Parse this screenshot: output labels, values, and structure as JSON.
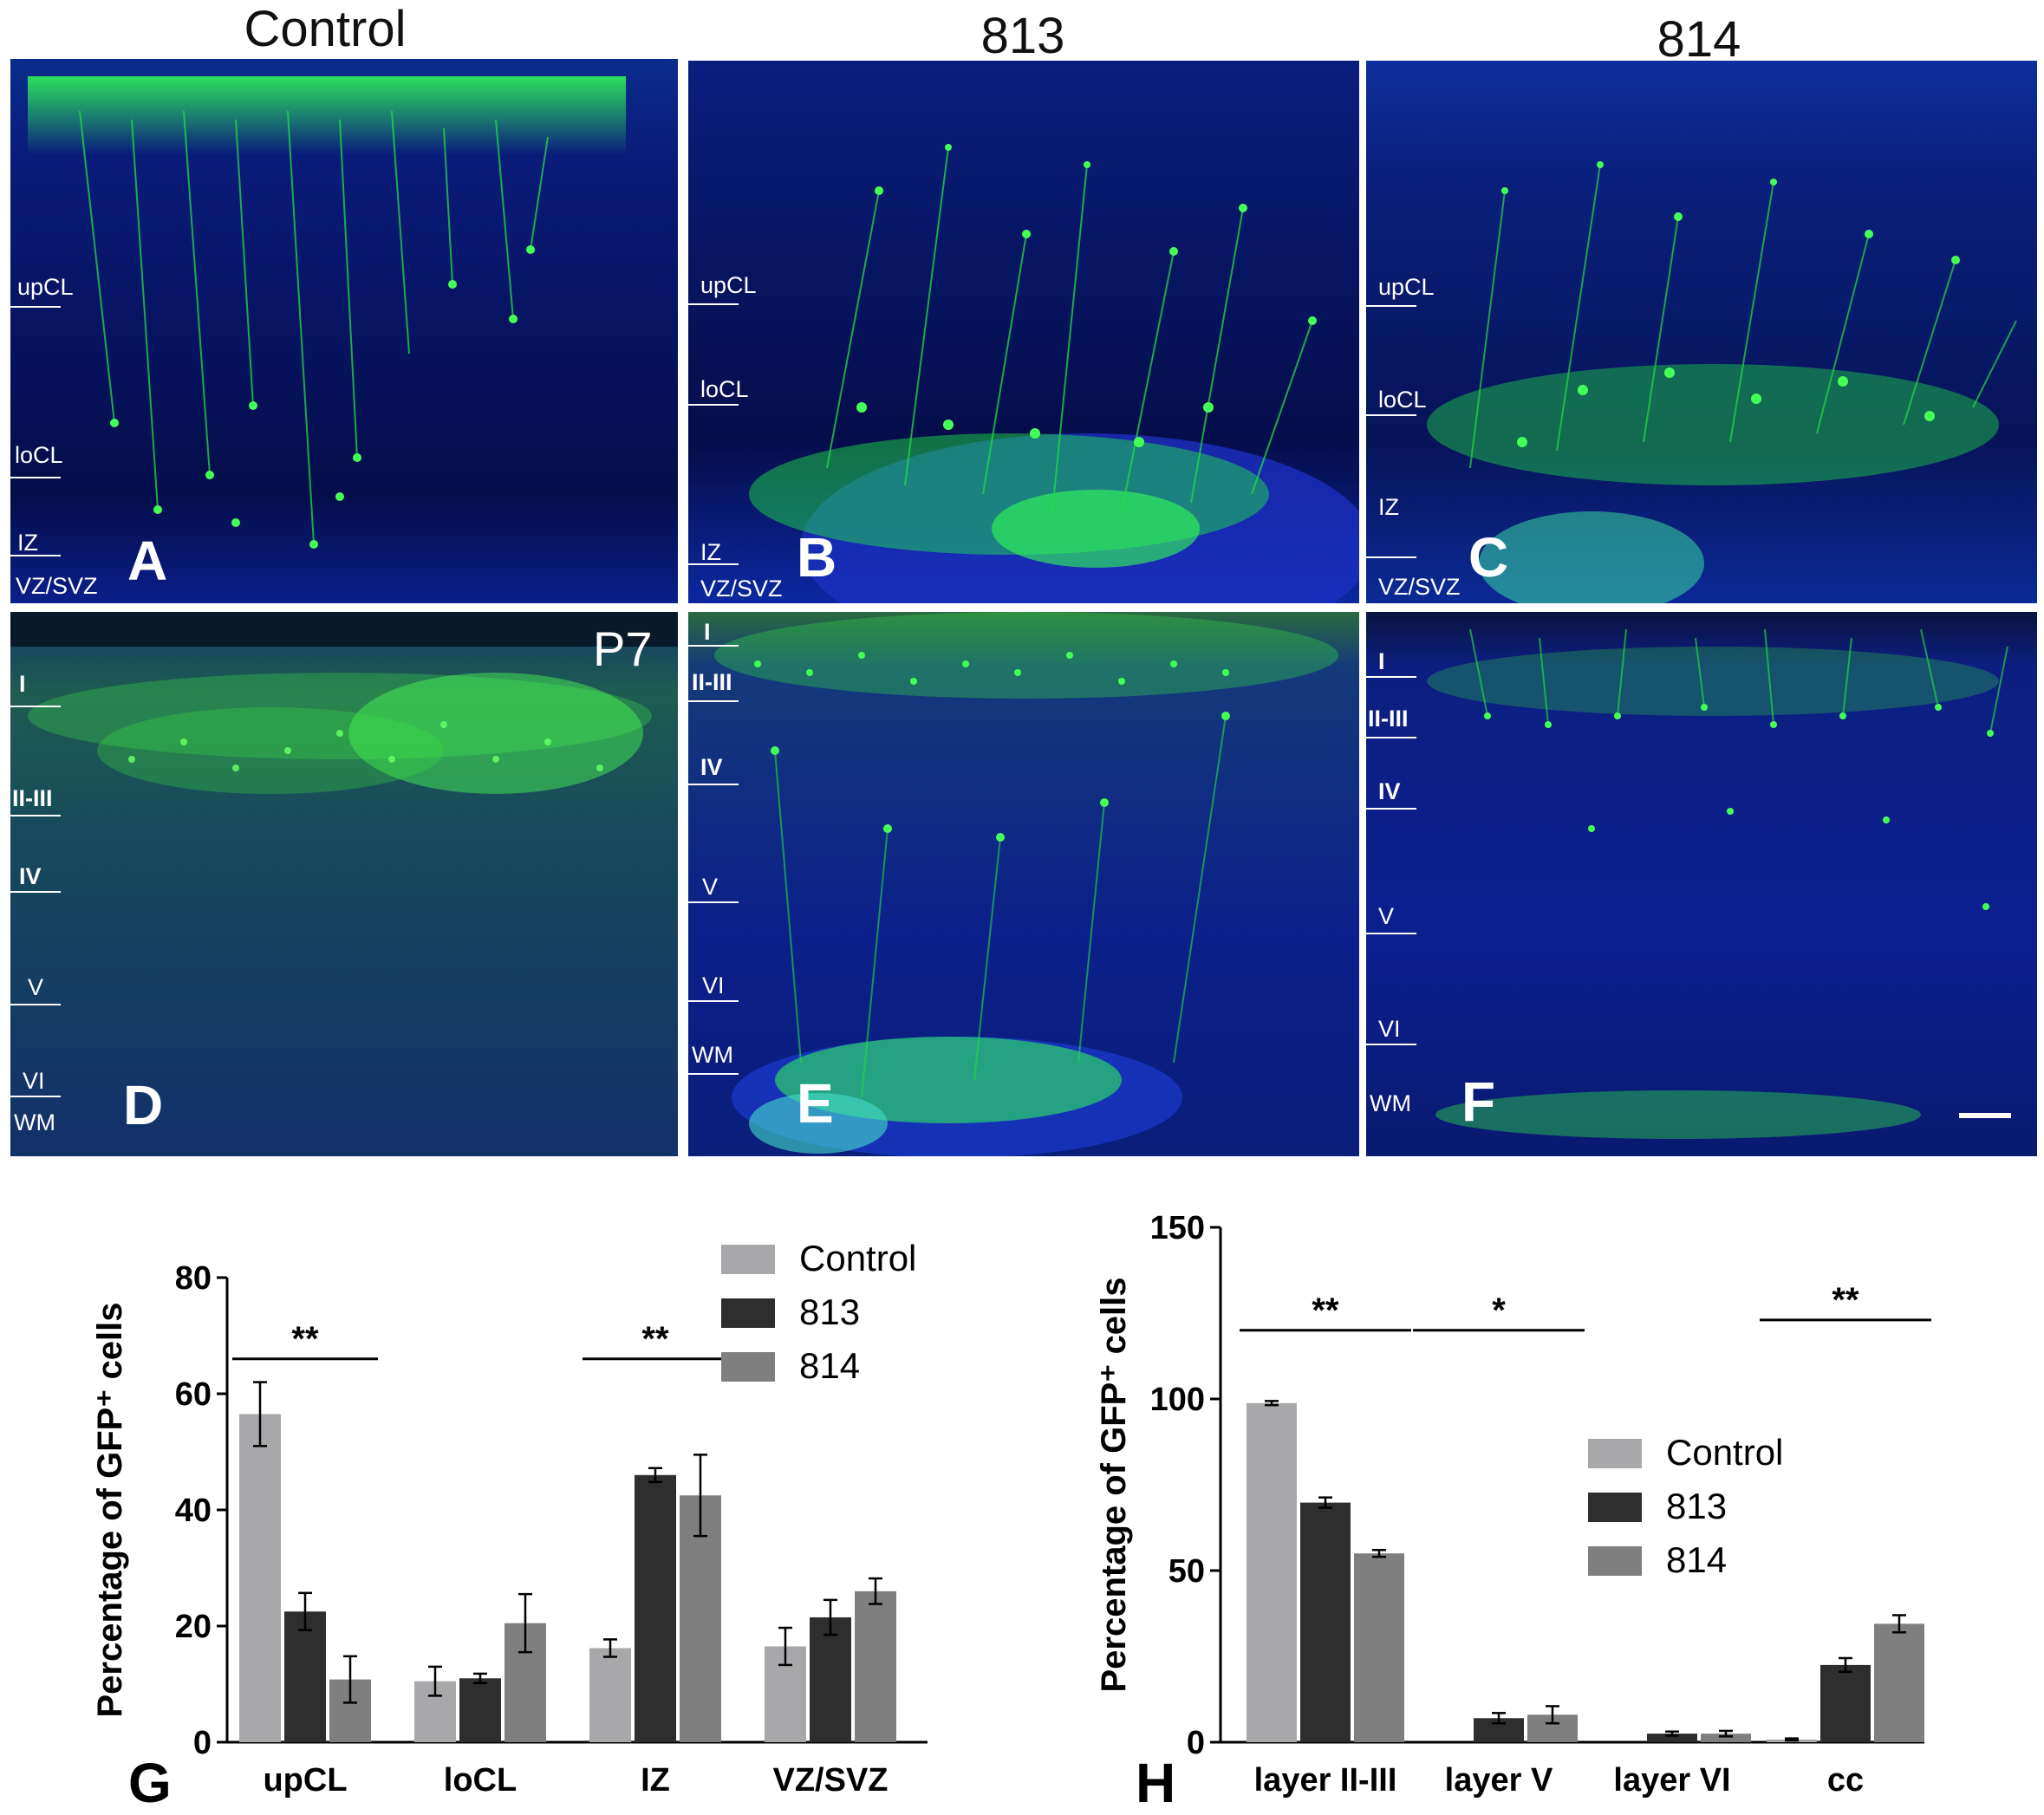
{
  "columns": [
    "Control",
    "813",
    "814"
  ],
  "panels": [
    {
      "letter": "A",
      "layers": [
        "upCL",
        "loCL",
        "IZ",
        "VZ/SVZ"
      ]
    },
    {
      "letter": "B",
      "layers": [
        "upCL",
        "loCL",
        "IZ",
        "VZ/SVZ"
      ]
    },
    {
      "letter": "C",
      "layers": [
        "upCL",
        "loCL",
        "IZ",
        "VZ/SVZ"
      ]
    },
    {
      "letter": "D",
      "badge": "P7",
      "layers": [
        "I",
        "II-III",
        "IV",
        "V",
        "VI",
        "WM"
      ]
    },
    {
      "letter": "E",
      "layers": [
        "I",
        "II-III",
        "IV",
        "V",
        "VI",
        "WM"
      ]
    },
    {
      "letter": "F",
      "layers": [
        "I",
        "II-III",
        "IV",
        "V",
        "VI",
        "WM"
      ]
    }
  ],
  "chart_data": [
    {
      "panel": "G",
      "type": "bar",
      "ylabel": "Percentage of GFP⁺ cells",
      "ylim": [
        0,
        80
      ],
      "yticks": [
        0,
        20,
        40,
        60,
        80
      ],
      "categories": [
        "upCL",
        "loCL",
        "IZ",
        "VZ/SVZ"
      ],
      "series": [
        {
          "name": "Control",
          "color": "#a8a8aa",
          "values": [
            56.5,
            10.5,
            16.2,
            16.5
          ],
          "errors": [
            5.5,
            2.5,
            1.5,
            3.2
          ]
        },
        {
          "name": "813",
          "color": "#2e2e2e",
          "values": [
            22.5,
            11.0,
            46.0,
            21.5
          ],
          "errors": [
            3.2,
            0.8,
            1.2,
            3.0
          ]
        },
        {
          "name": "814",
          "color": "#7f7f7f",
          "values": [
            10.8,
            20.5,
            42.5,
            26.0
          ],
          "errors": [
            4.0,
            5.0,
            7.0,
            2.2
          ]
        }
      ],
      "significance": [
        {
          "category": "upCL",
          "label": "**",
          "y": 66
        },
        {
          "category": "IZ",
          "label": "**",
          "y": 66
        }
      ],
      "legend_position": "top-right"
    },
    {
      "panel": "H",
      "type": "bar",
      "ylabel": "Percentage of GFP⁺ cells",
      "ylim": [
        0,
        150
      ],
      "yticks": [
        0,
        50,
        100,
        150
      ],
      "categories": [
        "layer II-III",
        "layer V",
        "layer VI",
        "cc"
      ],
      "series": [
        {
          "name": "Control",
          "color": "#a8a8aa",
          "values": [
            98.8,
            0,
            0,
            0.8
          ],
          "errors": [
            0.6,
            0,
            0,
            0.3
          ]
        },
        {
          "name": "813",
          "color": "#2e2e2e",
          "values": [
            69.8,
            7.0,
            2.5,
            22.5
          ],
          "errors": [
            1.5,
            1.5,
            0.6,
            2.0
          ]
        },
        {
          "name": "814",
          "color": "#7f7f7f",
          "values": [
            55.0,
            8.0,
            2.5,
            34.5
          ],
          "errors": [
            1.0,
            2.5,
            0.8,
            2.5
          ]
        }
      ],
      "significance": [
        {
          "category": "layer II-III",
          "label": "**",
          "y": 120
        },
        {
          "category": "layer V",
          "label": "*",
          "y": 120
        },
        {
          "category": "cc",
          "label": "**",
          "y": 123
        }
      ],
      "legend_position": "center-right"
    }
  ]
}
